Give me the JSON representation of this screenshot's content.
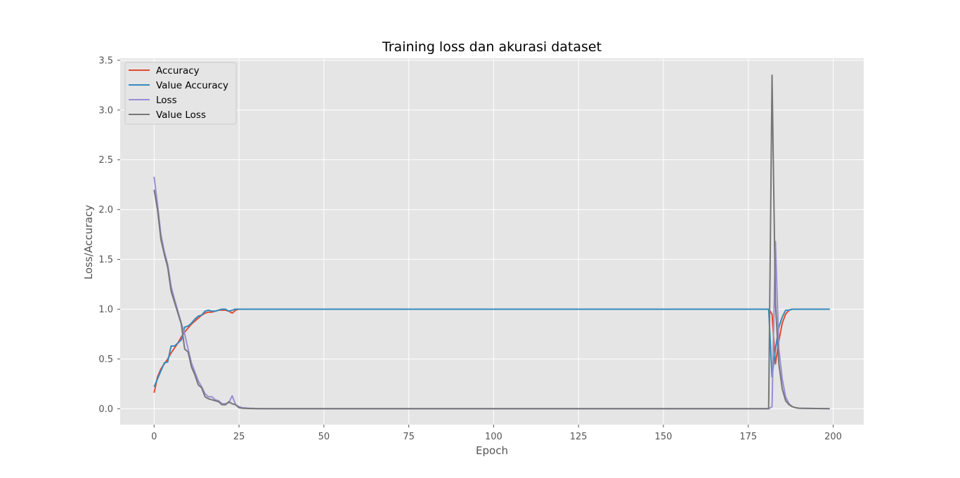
{
  "chart_data": {
    "type": "line",
    "title": "Training loss dan akurasi dataset",
    "xlabel": "Epoch",
    "ylabel": "Loss/Accuracy",
    "xlim": [
      -10,
      209
    ],
    "ylim": [
      -0.16,
      3.52
    ],
    "xticks": [
      0,
      25,
      50,
      75,
      100,
      125,
      150,
      175,
      200
    ],
    "xtick_labels": [
      "0",
      "25",
      "50",
      "75",
      "100",
      "125",
      "150",
      "175",
      "200"
    ],
    "yticks": [
      0.0,
      0.5,
      1.0,
      1.5,
      2.0,
      2.5,
      3.0,
      3.5
    ],
    "ytick_labels": [
      "0.0",
      "0.5",
      "1.0",
      "1.5",
      "2.0",
      "2.5",
      "3.0",
      "3.5"
    ],
    "grid": true,
    "legend_position": "top-left",
    "background": "#e5e5e5",
    "series": [
      {
        "name": "Accuracy",
        "color": "#e24a33",
        "points": [
          [
            0,
            0.16
          ],
          [
            1,
            0.32
          ],
          [
            2,
            0.4
          ],
          [
            3,
            0.45
          ],
          [
            4,
            0.5
          ],
          [
            5,
            0.56
          ],
          [
            6,
            0.61
          ],
          [
            7,
            0.66
          ],
          [
            8,
            0.72
          ],
          [
            9,
            0.77
          ],
          [
            10,
            0.81
          ],
          [
            11,
            0.85
          ],
          [
            12,
            0.88
          ],
          [
            13,
            0.91
          ],
          [
            14,
            0.94
          ],
          [
            15,
            0.96
          ],
          [
            16,
            0.97
          ],
          [
            17,
            0.97
          ],
          [
            18,
            0.98
          ],
          [
            19,
            0.99
          ],
          [
            20,
            0.99
          ],
          [
            21,
            0.99
          ],
          [
            22,
            0.98
          ],
          [
            23,
            0.96
          ],
          [
            24,
            0.99
          ],
          [
            25,
            1.0
          ],
          [
            180,
            1.0
          ],
          [
            181,
            1.0
          ],
          [
            182,
            0.95
          ],
          [
            183,
            0.45
          ],
          [
            184,
            0.68
          ],
          [
            185,
            0.86
          ],
          [
            186,
            0.95
          ],
          [
            187,
            0.99
          ],
          [
            188,
            1.0
          ],
          [
            199,
            1.0
          ]
        ]
      },
      {
        "name": "Value Accuracy",
        "color": "#348abd",
        "points": [
          [
            0,
            0.22
          ],
          [
            1,
            0.3
          ],
          [
            2,
            0.38
          ],
          [
            3,
            0.46
          ],
          [
            4,
            0.47
          ],
          [
            5,
            0.63
          ],
          [
            6,
            0.63
          ],
          [
            7,
            0.66
          ],
          [
            8,
            0.69
          ],
          [
            9,
            0.82
          ],
          [
            10,
            0.83
          ],
          [
            11,
            0.86
          ],
          [
            12,
            0.9
          ],
          [
            13,
            0.93
          ],
          [
            14,
            0.94
          ],
          [
            15,
            0.98
          ],
          [
            16,
            0.99
          ],
          [
            17,
            0.98
          ],
          [
            18,
            0.98
          ],
          [
            19,
            0.99
          ],
          [
            20,
            1.0
          ],
          [
            21,
            1.0
          ],
          [
            22,
            0.98
          ],
          [
            23,
            0.99
          ],
          [
            24,
            1.0
          ],
          [
            25,
            1.0
          ],
          [
            180,
            1.0
          ],
          [
            181,
            1.0
          ],
          [
            182,
            0.32
          ],
          [
            183,
            0.6
          ],
          [
            184,
            0.82
          ],
          [
            185,
            0.92
          ],
          [
            186,
            0.99
          ],
          [
            187,
            0.99
          ],
          [
            188,
            1.0
          ],
          [
            199,
            1.0
          ]
        ]
      },
      {
        "name": "Loss",
        "color": "#988ed5",
        "points": [
          [
            0,
            2.33
          ],
          [
            1,
            2.05
          ],
          [
            2,
            1.75
          ],
          [
            3,
            1.58
          ],
          [
            4,
            1.45
          ],
          [
            5,
            1.23
          ],
          [
            6,
            1.1
          ],
          [
            7,
            0.98
          ],
          [
            8,
            0.86
          ],
          [
            9,
            0.75
          ],
          [
            10,
            0.6
          ],
          [
            11,
            0.46
          ],
          [
            12,
            0.37
          ],
          [
            13,
            0.28
          ],
          [
            14,
            0.22
          ],
          [
            15,
            0.15
          ],
          [
            16,
            0.12
          ],
          [
            17,
            0.12
          ],
          [
            18,
            0.09
          ],
          [
            19,
            0.08
          ],
          [
            20,
            0.05
          ],
          [
            21,
            0.05
          ],
          [
            22,
            0.06
          ],
          [
            23,
            0.13
          ],
          [
            24,
            0.04
          ],
          [
            25,
            0.02
          ],
          [
            26,
            0.01
          ],
          [
            28,
            0.005
          ],
          [
            30,
            0.002
          ],
          [
            35,
            0.0
          ],
          [
            180,
            0.0
          ],
          [
            181,
            0.0
          ],
          [
            182,
            0.02
          ],
          [
            183,
            1.68
          ],
          [
            184,
            0.6
          ],
          [
            185,
            0.3
          ],
          [
            186,
            0.12
          ],
          [
            187,
            0.05
          ],
          [
            188,
            0.02
          ],
          [
            189,
            0.01
          ],
          [
            190,
            0.005
          ],
          [
            199,
            0.0
          ]
        ]
      },
      {
        "name": "Value Loss",
        "color": "#777777",
        "points": [
          [
            0,
            2.2
          ],
          [
            1,
            2.0
          ],
          [
            2,
            1.7
          ],
          [
            3,
            1.55
          ],
          [
            4,
            1.42
          ],
          [
            5,
            1.18
          ],
          [
            6,
            1.07
          ],
          [
            7,
            0.96
          ],
          [
            8,
            0.85
          ],
          [
            9,
            0.6
          ],
          [
            10,
            0.57
          ],
          [
            11,
            0.42
          ],
          [
            12,
            0.34
          ],
          [
            13,
            0.24
          ],
          [
            14,
            0.21
          ],
          [
            15,
            0.12
          ],
          [
            16,
            0.1
          ],
          [
            17,
            0.09
          ],
          [
            18,
            0.08
          ],
          [
            19,
            0.07
          ],
          [
            20,
            0.04
          ],
          [
            21,
            0.04
          ],
          [
            22,
            0.07
          ],
          [
            23,
            0.05
          ],
          [
            24,
            0.04
          ],
          [
            25,
            0.01
          ],
          [
            26,
            0.005
          ],
          [
            28,
            0.002
          ],
          [
            30,
            0.0
          ],
          [
            180,
            0.0
          ],
          [
            181,
            0.0
          ],
          [
            182,
            3.35
          ],
          [
            183,
            1.05
          ],
          [
            184,
            0.45
          ],
          [
            185,
            0.2
          ],
          [
            186,
            0.08
          ],
          [
            187,
            0.04
          ],
          [
            188,
            0.02
          ],
          [
            189,
            0.01
          ],
          [
            190,
            0.005
          ],
          [
            199,
            0.0
          ]
        ]
      }
    ]
  }
}
